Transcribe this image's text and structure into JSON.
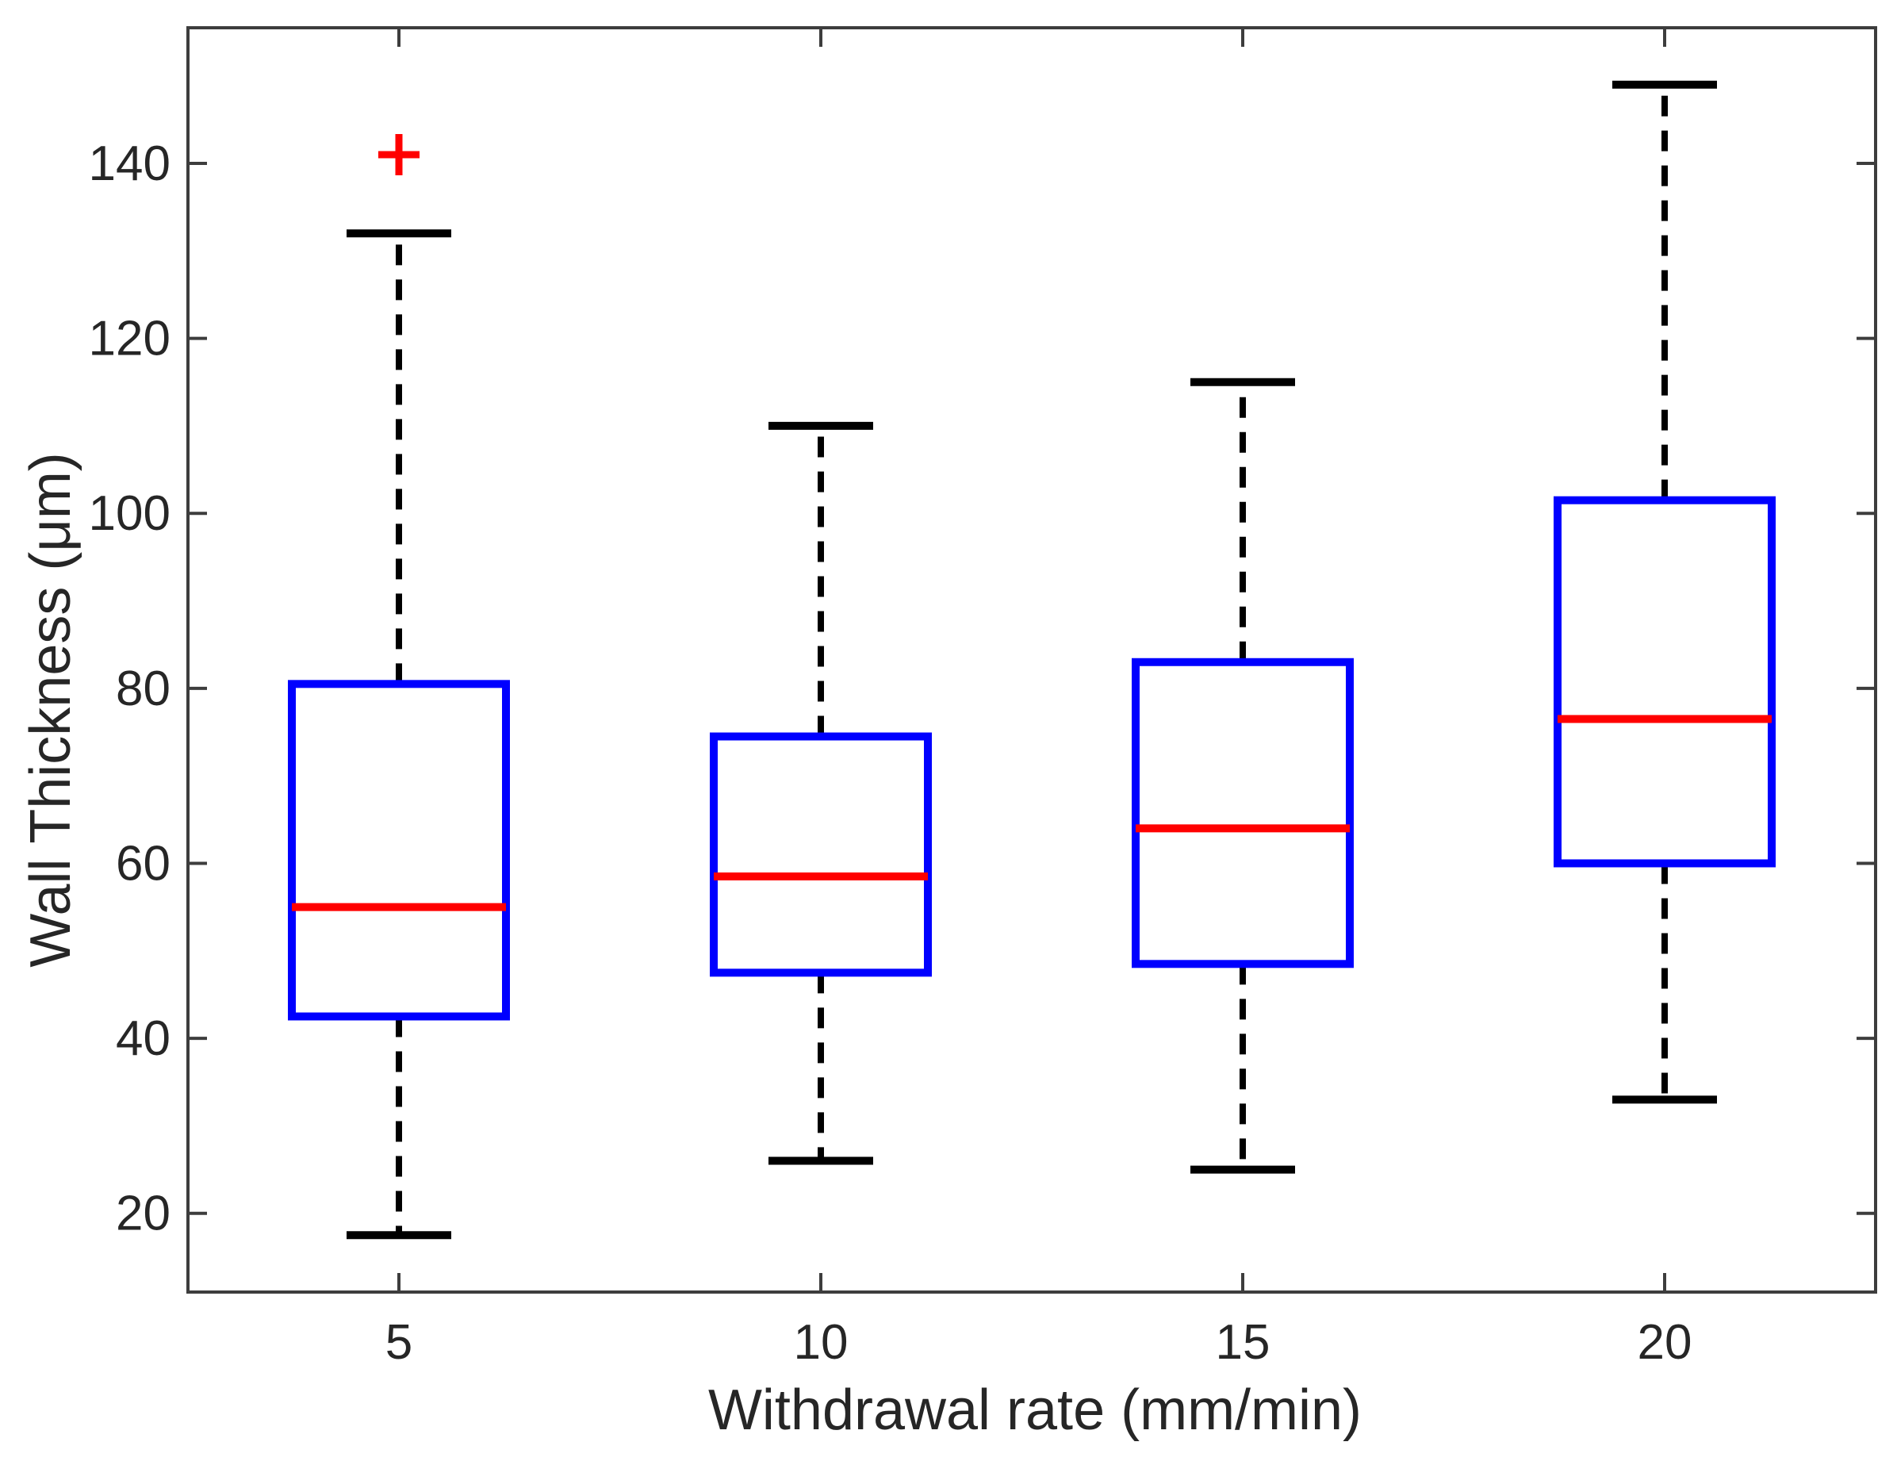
{
  "figure": {
    "background": "#ffffff"
  },
  "chart_data": {
    "type": "box",
    "title": "",
    "xlabel": "Withdrawal rate (mm/min)",
    "ylabel": "Wall Thickness (μm)",
    "categories": [
      "5",
      "10",
      "15",
      "20"
    ],
    "ylim": [
      11,
      155.5
    ],
    "y_ticks": [
      20,
      40,
      60,
      80,
      100,
      120,
      140
    ],
    "grid": false,
    "legend": "none",
    "boxes": [
      {
        "category": "5",
        "whisker_low": 17.5,
        "q1": 42.5,
        "median": 55,
        "q3": 80.5,
        "whisker_high": 132,
        "outliers": [
          141
        ]
      },
      {
        "category": "10",
        "whisker_low": 26,
        "q1": 47.5,
        "median": 58.5,
        "q3": 74.5,
        "whisker_high": 110,
        "outliers": []
      },
      {
        "category": "15",
        "whisker_low": 25,
        "q1": 48.5,
        "median": 64,
        "q3": 83,
        "whisker_high": 115,
        "outliers": []
      },
      {
        "category": "20",
        "whisker_low": 33,
        "q1": 60,
        "median": 76.5,
        "q3": 101.5,
        "whisker_high": 149,
        "outliers": []
      }
    ],
    "colors": {
      "box": "#0000ff",
      "median": "#ff0000",
      "whisker": "#000000",
      "cap": "#000000",
      "outlier": "#ff0000",
      "axis": "#3d3d3d",
      "label": "#262626"
    }
  }
}
